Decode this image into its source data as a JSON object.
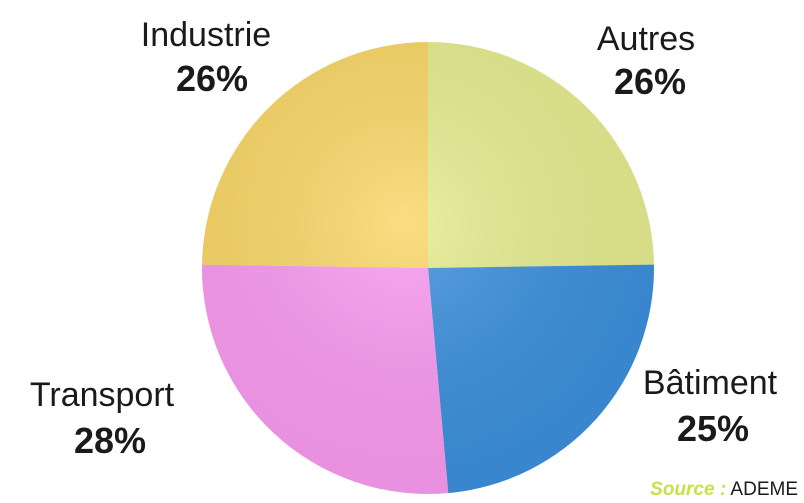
{
  "chart_data": {
    "type": "pie",
    "slices": [
      {
        "label": "Autres",
        "value": 26,
        "value_label": "26%",
        "color": "#e6ec8e"
      },
      {
        "label": "Bâtiment",
        "value": 25,
        "value_label": "25%",
        "color": "#3a8fdc"
      },
      {
        "label": "Transport",
        "value": 28,
        "value_label": "28%",
        "color": "#f99af0"
      },
      {
        "label": "Industrie",
        "value": 26,
        "value_label": "26%",
        "color": "#f9d766"
      }
    ],
    "start_angle_deg": 0,
    "direction": "clockwise",
    "source_key": "Source :",
    "source_value": "ADEME",
    "source_key_color": "#c6e24a"
  }
}
